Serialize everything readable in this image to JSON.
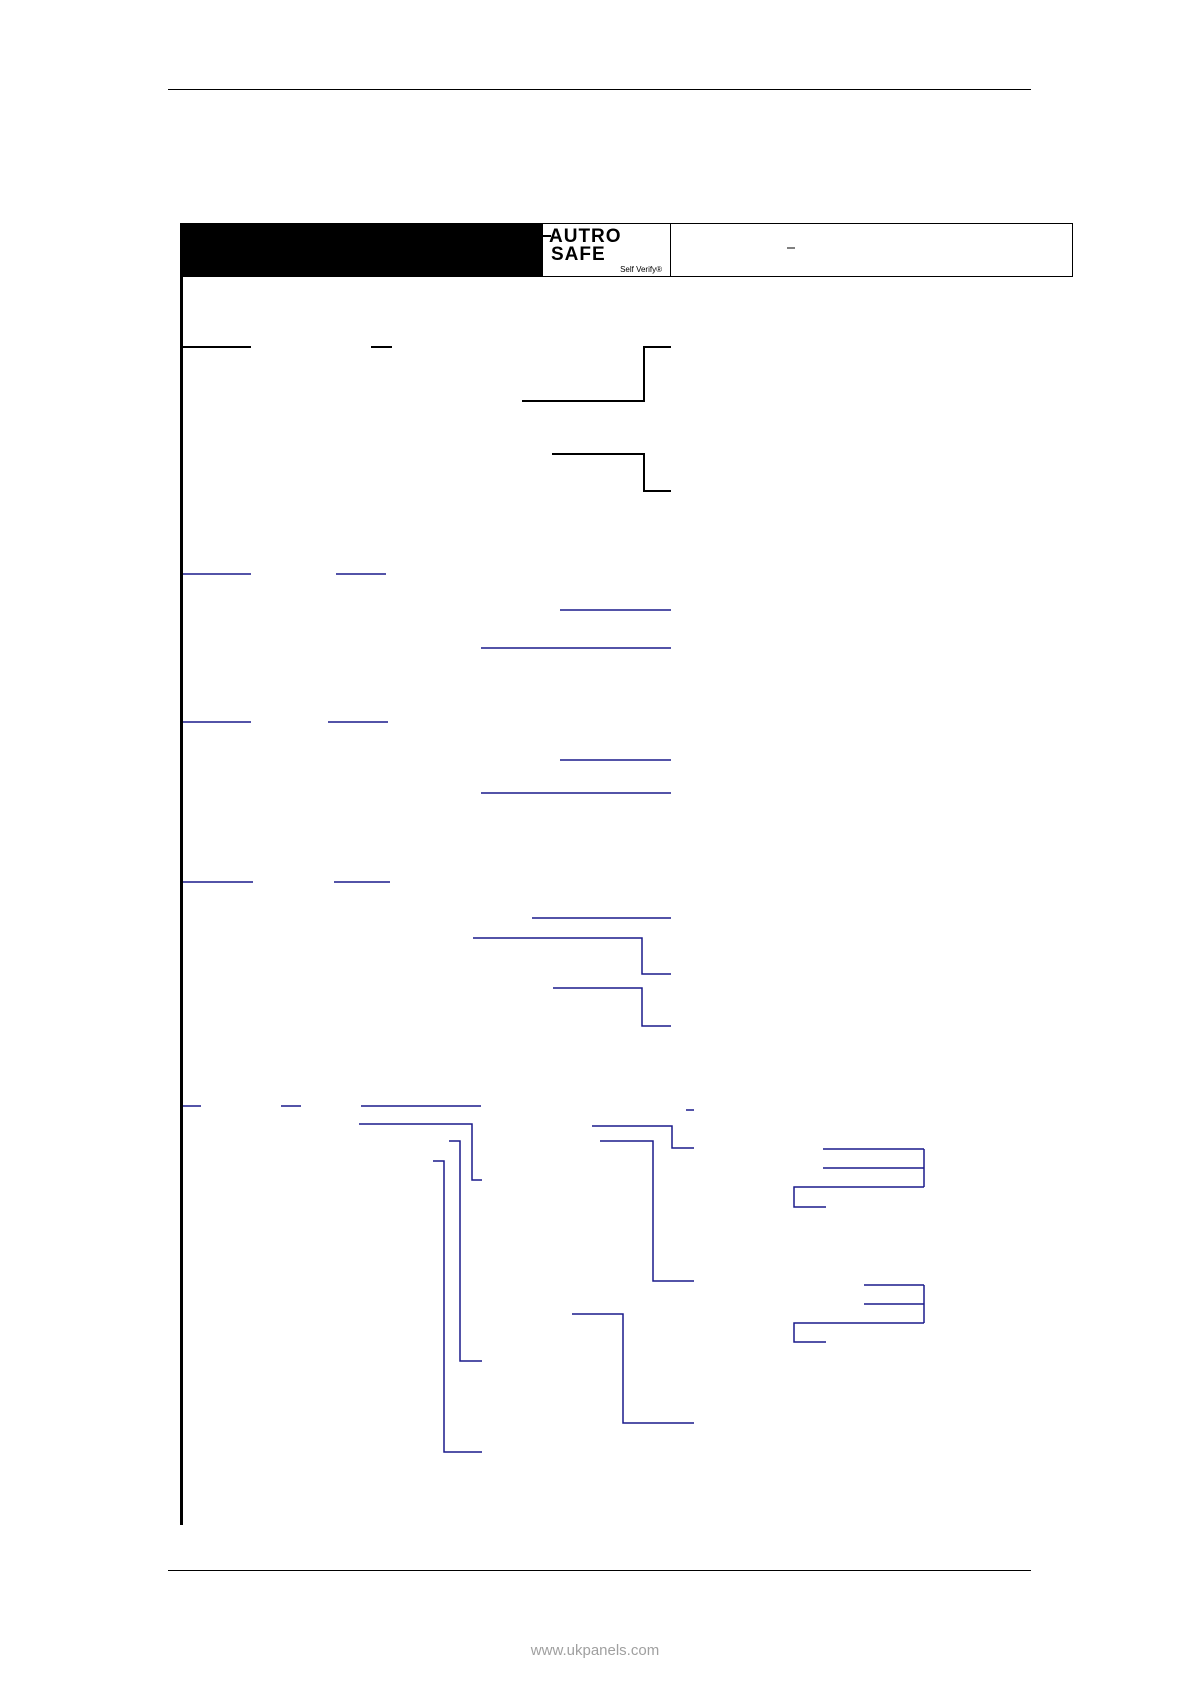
{
  "header": {
    "logo": {
      "line1": "AUTRO",
      "line2": "SAFE",
      "tagline": "Self Verify",
      "registered_mark": "®"
    }
  },
  "footer": {
    "url": "www.ukpanels.com"
  },
  "colors": {
    "tree_black": "#000000",
    "tree_blue": "#1a1a8c",
    "footer_text": "#a0a0a0"
  }
}
